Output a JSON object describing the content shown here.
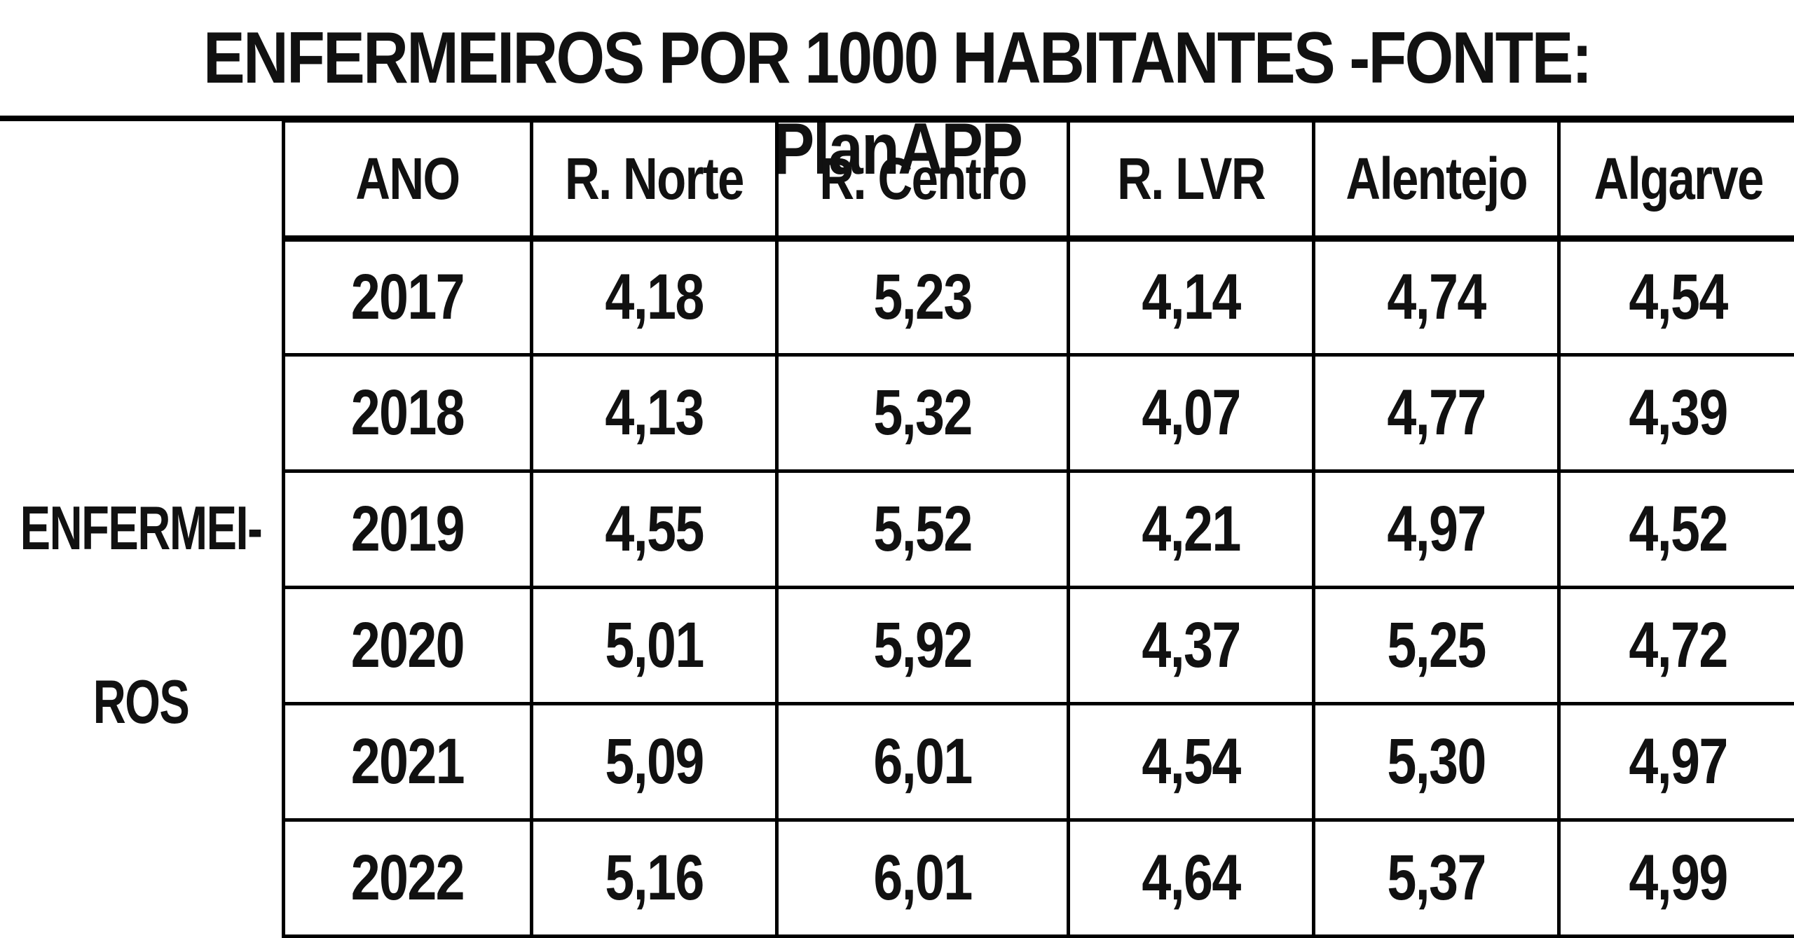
{
  "chart_data": {
    "type": "table",
    "title": "ENFERMEIROS POR 1000 HABITANTES -FONTE: PlanAPP",
    "row_group_label": "ENFERMEI-ROS",
    "row_group_label_lines": [
      "ENFERMEI-",
      "ROS"
    ],
    "columns": [
      "ANO",
      "R. Norte",
      "R. Centro",
      "R. LVR",
      "Alentejo",
      "Algarve"
    ],
    "rows": [
      [
        "2017",
        "4,18",
        "5,23",
        "4,14",
        "4,74",
        "4,54"
      ],
      [
        "2018",
        "4,13",
        "5,32",
        "4,07",
        "4,77",
        "4,39"
      ],
      [
        "2019",
        "4,55",
        "5,52",
        "4,21",
        "4,97",
        "4,52"
      ],
      [
        "2020",
        "5,01",
        "5,92",
        "4,37",
        "5,25",
        "4,72"
      ],
      [
        "2021",
        "5,09",
        "6,01",
        "4,54",
        "5,30",
        "4,97"
      ],
      [
        "2022",
        "5,16",
        "6,01",
        "4,64",
        "5,37",
        "4,99"
      ]
    ]
  }
}
